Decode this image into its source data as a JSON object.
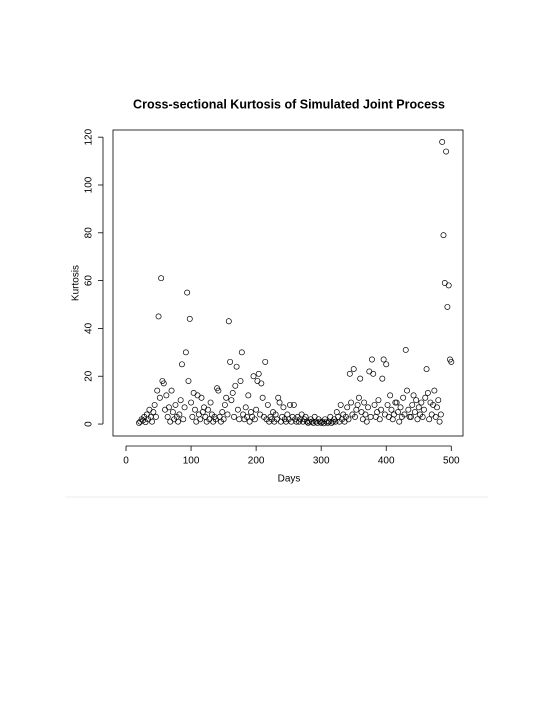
{
  "chart_data": {
    "type": "scatter",
    "title": "Cross-sectional Kurtosis of Simulated Joint Process",
    "x_label": "Days",
    "y_label": "Kurtosis",
    "xlim": [
      -20,
      518
    ],
    "ylim": [
      -5,
      123
    ],
    "xticks": [
      0,
      100,
      200,
      300,
      400,
      500
    ],
    "yticks": [
      0,
      20,
      40,
      60,
      80,
      100,
      120
    ],
    "color": "#000000",
    "x": [
      20,
      22,
      24,
      26,
      28,
      30,
      32,
      34,
      36,
      38,
      40,
      42,
      44,
      46,
      48,
      50,
      52,
      54,
      56,
      58,
      60,
      62,
      64,
      66,
      68,
      70,
      72,
      74,
      76,
      78,
      80,
      82,
      84,
      86,
      88,
      90,
      92,
      94,
      96,
      98,
      100,
      102,
      104,
      106,
      108,
      110,
      112,
      114,
      116,
      118,
      120,
      122,
      124,
      126,
      128,
      130,
      132,
      134,
      136,
      138,
      140,
      142,
      144,
      146,
      148,
      150,
      152,
      154,
      156,
      158,
      160,
      162,
      164,
      166,
      168,
      170,
      172,
      174,
      176,
      178,
      180,
      182,
      184,
      186,
      188,
      190,
      192,
      194,
      196,
      198,
      200,
      202,
      204,
      206,
      208,
      210,
      212,
      214,
      216,
      218,
      220,
      222,
      224,
      226,
      228,
      230,
      232,
      234,
      236,
      238,
      240,
      242,
      244,
      246,
      248,
      250,
      252,
      254,
      256,
      258,
      260,
      262,
      264,
      266,
      268,
      270,
      272,
      274,
      276,
      278,
      280,
      282,
      284,
      286,
      288,
      290,
      292,
      294,
      296,
      298,
      300,
      302,
      304,
      306,
      308,
      310,
      312,
      314,
      316,
      318,
      320,
      322,
      324,
      326,
      328,
      330,
      332,
      334,
      336,
      338,
      340,
      342,
      344,
      346,
      348,
      350,
      352,
      354,
      356,
      358,
      360,
      362,
      364,
      366,
      368,
      370,
      372,
      374,
      376,
      378,
      380,
      382,
      384,
      386,
      388,
      390,
      392,
      394,
      396,
      398,
      400,
      402,
      404,
      406,
      408,
      410,
      412,
      414,
      416,
      418,
      420,
      422,
      424,
      426,
      428,
      430,
      432,
      434,
      436,
      438,
      440,
      442,
      444,
      446,
      448,
      450,
      452,
      454,
      456,
      458,
      460,
      462,
      464,
      466,
      468,
      470,
      472,
      474,
      476,
      478,
      480,
      482,
      484,
      486,
      488,
      490,
      492,
      494,
      496,
      498,
      500
    ],
    "y": [
      0.5,
      1,
      2,
      1.5,
      3,
      0.8,
      4,
      2,
      6,
      3,
      1,
      5,
      8,
      3,
      14,
      45,
      11,
      61,
      18,
      17,
      6,
      12,
      3,
      7,
      1,
      14,
      5,
      2,
      8,
      3,
      1,
      4,
      10,
      25,
      2,
      7,
      30,
      55,
      18,
      44,
      9,
      3,
      13,
      6,
      1,
      12,
      4,
      2,
      11,
      5,
      7,
      3,
      1,
      6,
      2,
      9,
      4,
      1,
      3,
      2,
      15,
      14,
      3,
      1,
      5,
      2,
      8,
      11,
      4,
      43,
      26,
      10,
      13,
      3,
      16,
      24,
      6,
      2,
      18,
      30,
      4,
      2,
      7,
      3,
      12,
      1,
      5,
      3,
      20,
      2,
      6,
      18,
      21,
      4,
      17,
      11,
      3,
      26,
      2,
      8,
      1,
      3,
      2,
      5,
      1,
      4,
      2,
      11,
      9,
      1,
      3,
      7,
      2,
      1,
      4,
      2,
      8,
      1,
      3,
      8,
      2,
      1,
      3,
      1,
      2,
      4,
      1,
      2,
      3,
      1,
      0.5,
      1,
      2,
      1,
      0.5,
      3,
      1,
      0.5,
      2,
      1,
      0.5,
      1,
      0.3,
      2,
      1,
      0.5,
      1,
      3,
      0.5,
      1,
      2,
      1,
      5,
      3,
      1,
      8,
      2,
      4,
      1,
      3,
      7,
      2,
      21,
      9,
      4,
      23,
      3,
      6,
      8,
      11,
      19,
      5,
      2,
      9,
      4,
      1,
      7,
      22,
      3,
      27,
      21,
      8,
      3,
      5,
      10,
      2,
      6,
      19,
      27,
      4,
      25,
      8,
      3,
      12,
      6,
      2,
      4,
      9,
      9,
      5,
      1,
      7,
      3,
      11,
      4,
      31,
      14,
      6,
      3,
      3,
      8,
      12,
      5,
      10,
      2,
      7,
      4,
      9,
      3,
      6,
      11,
      23,
      13,
      2,
      9,
      4,
      8,
      14,
      3,
      7,
      10,
      1,
      4,
      118,
      79,
      59,
      114,
      49,
      58,
      27,
      26
    ]
  }
}
